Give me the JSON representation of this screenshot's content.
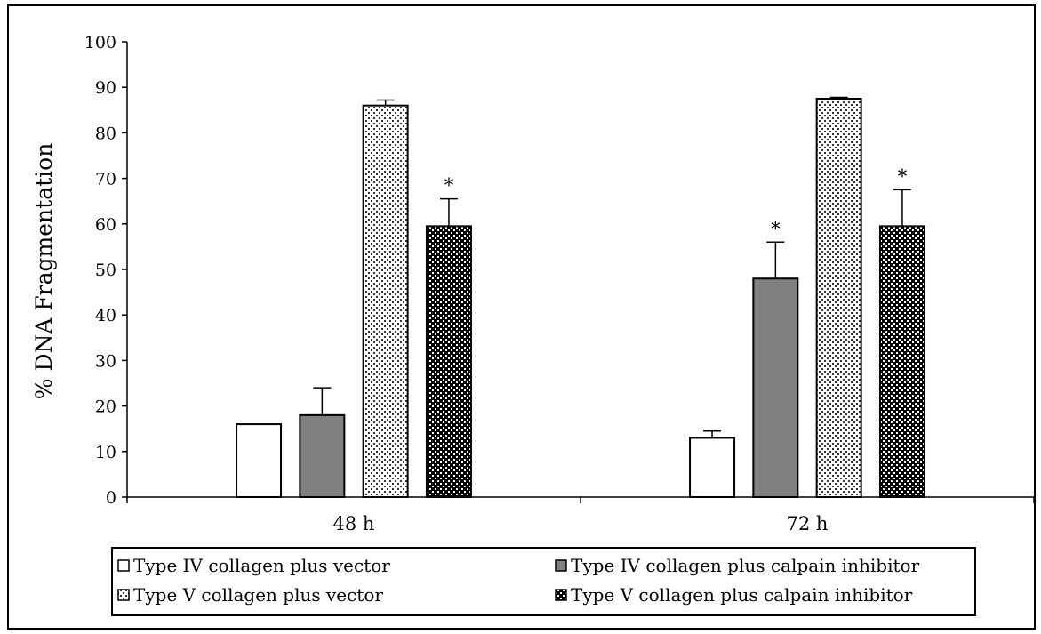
{
  "chart_data": {
    "type": "bar",
    "title": "",
    "xlabel": "",
    "ylabel": "% DNA Fragmentation",
    "ylim": [
      0,
      100
    ],
    "yticks": [
      0,
      10,
      20,
      30,
      40,
      50,
      60,
      70,
      80,
      90,
      100
    ],
    "categories": [
      "48 h",
      "72 h"
    ],
    "series": [
      {
        "name": "Type IV collagen plus vector",
        "values": [
          16,
          13
        ],
        "errors": [
          0,
          1.5
        ],
        "significant": [
          false,
          false
        ],
        "fill": "white"
      },
      {
        "name": "Type IV collagen plus calpain inhibitor",
        "values": [
          18,
          48
        ],
        "errors": [
          6,
          8
        ],
        "significant": [
          false,
          true
        ],
        "fill": "grey"
      },
      {
        "name": "Type V collagen plus vector",
        "values": [
          86,
          87.5
        ],
        "errors": [
          1.2,
          0.3
        ],
        "significant": [
          false,
          false
        ],
        "fill": "light-dotted"
      },
      {
        "name": "Type V collagen plus calpain inhibitor",
        "values": [
          59.5,
          59.5
        ],
        "errors": [
          6,
          8
        ],
        "significant": [
          true,
          true
        ],
        "fill": "dark-dotted"
      }
    ],
    "significance_marker": "*",
    "grid": false,
    "legend": "bottom"
  },
  "colors": {
    "grey": "#808080",
    "dark": "#000000",
    "white": "#ffffff"
  }
}
